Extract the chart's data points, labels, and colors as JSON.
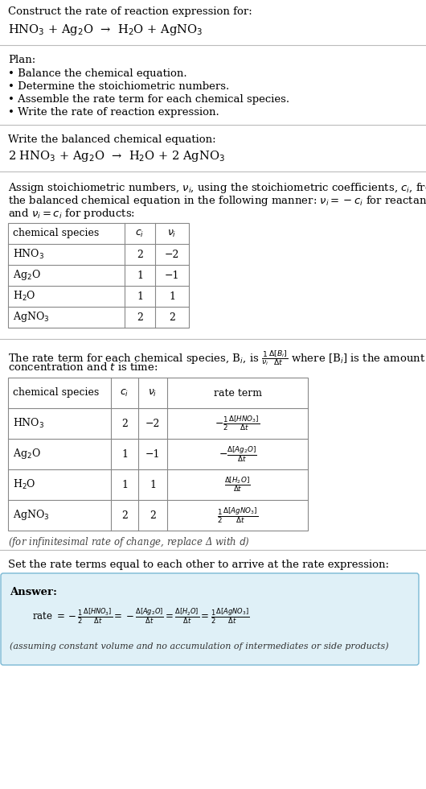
{
  "bg_color": "#ffffff",
  "title_line1": "Construct the rate of reaction expression for:",
  "reaction_unbalanced": "HNO$_3$ + Ag$_2$O  →  H$_2$O + AgNO$_3$",
  "plan_header": "Plan:",
  "plan_items": [
    "• Balance the chemical equation.",
    "• Determine the stoichiometric numbers.",
    "• Assemble the rate term for each chemical species.",
    "• Write the rate of reaction expression."
  ],
  "balanced_header": "Write the balanced chemical equation:",
  "reaction_balanced": "2 HNO$_3$ + Ag$_2$O  →  H$_2$O + 2 AgNO$_3$",
  "stoich_header_parts": [
    "Assign stoichiometric numbers, $\\nu_i$, using the stoichiometric coefficients, $c_i$, from",
    "the balanced chemical equation in the following manner: $\\nu_i = -c_i$ for reactants",
    "and $\\nu_i = c_i$ for products:"
  ],
  "table1_headers": [
    "chemical species",
    "$c_i$",
    "$\\nu_i$"
  ],
  "table1_rows": [
    [
      "HNO$_3$",
      "2",
      "−2"
    ],
    [
      "Ag$_2$O",
      "1",
      "−1"
    ],
    [
      "H$_2$O",
      "1",
      "1"
    ],
    [
      "AgNO$_3$",
      "2",
      "2"
    ]
  ],
  "rate_term_header_parts": [
    "The rate term for each chemical species, B$_i$, is $\\frac{1}{\\nu_i}\\frac{\\Delta[B_i]}{\\Delta t}$ where [B$_i$] is the amount",
    "concentration and $t$ is time:"
  ],
  "table2_headers": [
    "chemical species",
    "$c_i$",
    "$\\nu_i$",
    "rate term"
  ],
  "table2_rows": [
    [
      "HNO$_3$",
      "2",
      "−2",
      "$-\\frac{1}{2}\\frac{\\Delta[HNO_3]}{\\Delta t}$"
    ],
    [
      "Ag$_2$O",
      "1",
      "−1",
      "$-\\frac{\\Delta[Ag_2O]}{\\Delta t}$"
    ],
    [
      "H$_2$O",
      "1",
      "1",
      "$\\frac{\\Delta[H_2O]}{\\Delta t}$"
    ],
    [
      "AgNO$_3$",
      "2",
      "2",
      "$\\frac{1}{2}\\frac{\\Delta[AgNO_3]}{\\Delta t}$"
    ]
  ],
  "infinitesimal_note": "(for infinitesimal rate of change, replace Δ with $d$)",
  "answer_header": "Set the rate terms equal to each other to arrive at the rate expression:",
  "answer_box_color": "#dff0f7",
  "answer_box_border": "#7ab8d4",
  "answer_label": "Answer:",
  "rate_expression_parts": [
    "rate $= -\\frac{1}{2}\\frac{\\Delta[HNO_3]}{\\Delta t} = -\\frac{\\Delta[Ag_2O]}{\\Delta t} = \\frac{\\Delta[H_2O]}{\\Delta t} = \\frac{1}{2}\\frac{\\Delta[AgNO_3]}{\\Delta t}$"
  ],
  "assumption_note": "(assuming constant volume and no accumulation of intermediates or side products)"
}
